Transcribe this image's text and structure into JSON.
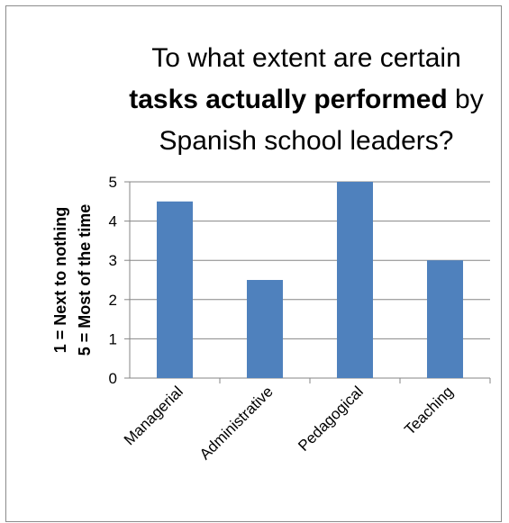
{
  "chart_data": {
    "type": "bar",
    "title_lines": [
      [
        {
          "text": "To what extent are certain",
          "bold": false
        }
      ],
      [
        {
          "text": "tasks actually performed",
          "bold": true
        },
        {
          "text": " by",
          "bold": false
        }
      ],
      [
        {
          "text": "Spanish school leaders?",
          "bold": false
        }
      ]
    ],
    "ylabel_lines": [
      "1 = Next to nothing",
      "5 = Most of the time"
    ],
    "categories": [
      "Managerial",
      "Administrative",
      "Pedagogical",
      "Teaching"
    ],
    "values": [
      4.5,
      2.5,
      5,
      3
    ],
    "ylim": [
      0,
      5
    ],
    "yticks": [
      "0",
      "1",
      "2",
      "3",
      "4",
      "5"
    ],
    "grid": true,
    "bar_color": "#4f81bd",
    "grid_color": "#868686"
  }
}
